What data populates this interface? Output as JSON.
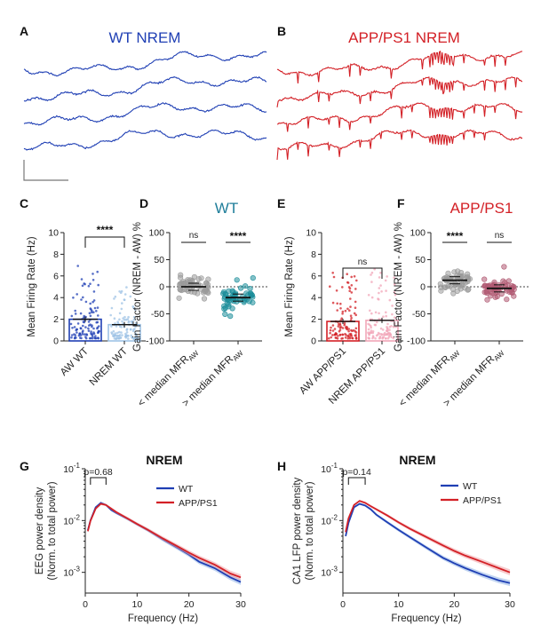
{
  "colors": {
    "wt": "#1f3fb4",
    "app": "#d32026",
    "wt_light": "#9fc3e6",
    "app_light": "#f2a6b8",
    "teal": "#1d8e9a",
    "gray_dot": "#9a9a9a",
    "mauve": "#b05a72",
    "axis": "#222222"
  },
  "panels": {
    "A": {
      "label": "A",
      "title": "WT NREM",
      "traces": 4
    },
    "B": {
      "label": "B",
      "title": "APP/PS1 NREM",
      "traces": 4
    },
    "C": {
      "label": "C"
    },
    "D": {
      "label": "D",
      "title": "WT"
    },
    "E": {
      "label": "E"
    },
    "F": {
      "label": "F",
      "title": "APP/PS1"
    },
    "G": {
      "label": "G",
      "title": "NREM"
    },
    "H": {
      "label": "H",
      "title": "NREM"
    }
  },
  "chart_data": [
    {
      "id": "C",
      "type": "bar",
      "ylabel": "Mean Firing Rate (Hz)",
      "ylim": [
        0,
        10
      ],
      "yticks": [
        "0",
        "2",
        "4",
        "6",
        "8",
        "10"
      ],
      "categories": [
        "AW WT",
        "NREM WT"
      ],
      "values": [
        2.0,
        1.5
      ],
      "significance": "****"
    },
    {
      "id": "D",
      "type": "scatter",
      "title": "WT",
      "ylabel": "Gain Factor (NREM - AW) %",
      "ylim": [
        -100,
        100
      ],
      "yticks": [
        "-100",
        "-50",
        "0",
        "50",
        "100"
      ],
      "categories": [
        "< median MFR",
        "> median MFR"
      ],
      "category_subscript": "AW",
      "medians": [
        0,
        -20
      ],
      "significance": [
        "ns",
        "****"
      ],
      "reference_line": 0
    },
    {
      "id": "E",
      "type": "bar",
      "ylabel": "Mean Firing Rate (Hz)",
      "ylim": [
        0,
        10
      ],
      "yticks": [
        "0",
        "2",
        "4",
        "6",
        "8",
        "10"
      ],
      "categories": [
        "AW APP/PS1",
        "NREM APP/PS1"
      ],
      "values": [
        1.8,
        1.9
      ],
      "significance": "ns"
    },
    {
      "id": "F",
      "type": "scatter",
      "title": "APP/PS1",
      "ylabel": "Gain Factor (NREM - AW) %",
      "ylim": [
        -100,
        100
      ],
      "yticks": [
        "-100",
        "-50",
        "0",
        "50",
        "100"
      ],
      "categories": [
        "< median MFR",
        "> median MFR"
      ],
      "category_subscript": "AW",
      "medians": [
        12,
        -3
      ],
      "significance": [
        "****",
        "ns"
      ],
      "reference_line": 0
    },
    {
      "id": "G",
      "type": "line",
      "title": "NREM",
      "xlabel": "Frequency (Hz)",
      "ylabel": "EEG power density",
      "ylabel2": "(Norm. to total power)",
      "xlim": [
        0,
        30
      ],
      "xticks": [
        "0",
        "10",
        "20",
        "30"
      ],
      "ylim_log10": [
        -3.4,
        -1
      ],
      "yticks": [
        "10-3",
        "10-2",
        "10-1"
      ],
      "pvalue": "p=0.68",
      "legend": [
        "WT",
        "APP/PS1"
      ],
      "x": [
        0.5,
        1,
        2,
        3,
        4,
        5,
        6,
        8,
        10,
        12,
        15,
        18,
        20,
        22,
        25,
        28,
        30
      ],
      "series": [
        {
          "name": "WT",
          "values": [
            0.0065,
            0.01,
            0.018,
            0.022,
            0.02,
            0.016,
            0.014,
            0.011,
            0.0085,
            0.0066,
            0.0043,
            0.0029,
            0.0022,
            0.0016,
            0.0012,
            0.0008,
            0.00065
          ]
        },
        {
          "name": "APP/PS1",
          "values": [
            0.0062,
            0.0098,
            0.017,
            0.021,
            0.02,
            0.017,
            0.0145,
            0.0112,
            0.0086,
            0.0067,
            0.0045,
            0.0031,
            0.0024,
            0.0019,
            0.0014,
            0.00095,
            0.0008
          ]
        }
      ]
    },
    {
      "id": "H",
      "type": "line",
      "title": "NREM",
      "xlabel": "Frequency (Hz)",
      "ylabel": "CA1 LFP power density",
      "ylabel2": "(Norm. to total power)",
      "xlim": [
        0,
        30
      ],
      "xticks": [
        "0",
        "10",
        "20",
        "30"
      ],
      "ylim_log10": [
        -3.4,
        -1
      ],
      "yticks": [
        "10-3",
        "10-2",
        "10-1"
      ],
      "pvalue": "p=0.14",
      "legend": [
        "WT",
        "APP/PS1"
      ],
      "x": [
        0.5,
        1,
        2,
        3,
        4,
        5,
        6,
        8,
        10,
        12,
        15,
        18,
        20,
        22,
        25,
        28,
        30
      ],
      "series": [
        {
          "name": "WT",
          "values": [
            0.005,
            0.009,
            0.018,
            0.021,
            0.0195,
            0.0165,
            0.013,
            0.0092,
            0.0066,
            0.0048,
            0.003,
            0.0019,
            0.0015,
            0.0012,
            0.0009,
            0.0007,
            0.00062
          ]
        },
        {
          "name": "APP/PS1",
          "values": [
            0.006,
            0.011,
            0.02,
            0.024,
            0.022,
            0.019,
            0.0165,
            0.0125,
            0.0092,
            0.007,
            0.0048,
            0.0033,
            0.0026,
            0.0021,
            0.0016,
            0.0012,
            0.001
          ]
        }
      ]
    }
  ]
}
